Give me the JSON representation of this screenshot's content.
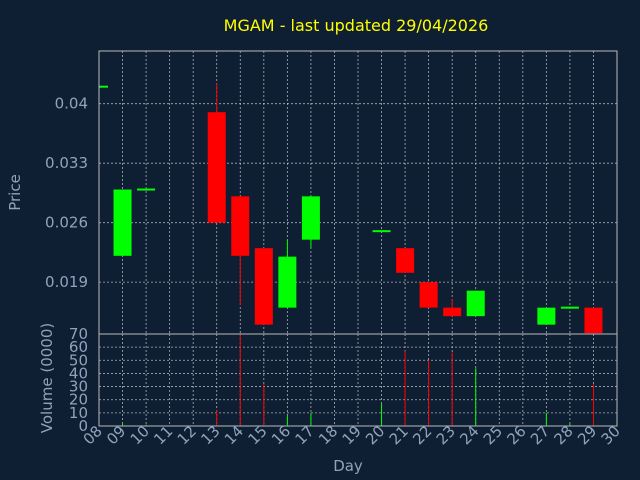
{
  "chart_data": [
    {
      "type": "candlestick",
      "title": "MGAM - last updated 29/04/2026",
      "ylabel": "Price",
      "ylim": [
        0.0129,
        0.0462
      ],
      "yticks": [
        "0.04",
        "0.033",
        "0.026",
        "0.019"
      ],
      "ytick_values": [
        0.04,
        0.033,
        0.026,
        0.019
      ],
      "grid": true,
      "up_color": "#00ff00",
      "down_color": "#ff0000",
      "candles": [
        {
          "day": 8,
          "open": 0.042,
          "close": 0.042,
          "high": 0.042,
          "low": 0.042
        },
        {
          "day": 9,
          "open": 0.0221,
          "close": 0.0299,
          "high": 0.0299,
          "low": 0.0221
        },
        {
          "day": 10,
          "open": 0.0298,
          "close": 0.0299,
          "high": 0.0299,
          "low": 0.0298
        },
        {
          "day": 13,
          "open": 0.039,
          "close": 0.026,
          "high": 0.0424,
          "low": 0.026
        },
        {
          "day": 14,
          "open": 0.0291,
          "close": 0.0221,
          "high": 0.0291,
          "low": 0.0163
        },
        {
          "day": 15,
          "open": 0.023,
          "close": 0.014,
          "high": 0.023,
          "low": 0.014
        },
        {
          "day": 16,
          "open": 0.016,
          "close": 0.022,
          "high": 0.024,
          "low": 0.016
        },
        {
          "day": 17,
          "open": 0.024,
          "close": 0.0291,
          "high": 0.0291,
          "low": 0.023
        },
        {
          "day": 20,
          "open": 0.025,
          "close": 0.025,
          "high": 0.025,
          "low": 0.025
        },
        {
          "day": 21,
          "open": 0.023,
          "close": 0.0201,
          "high": 0.023,
          "low": 0.0201
        },
        {
          "day": 22,
          "open": 0.019,
          "close": 0.016,
          "high": 0.019,
          "low": 0.016
        },
        {
          "day": 23,
          "open": 0.016,
          "close": 0.015,
          "high": 0.017,
          "low": 0.015
        },
        {
          "day": 24,
          "open": 0.015,
          "close": 0.018,
          "high": 0.018,
          "low": 0.015
        },
        {
          "day": 27,
          "open": 0.014,
          "close": 0.016,
          "high": 0.016,
          "low": 0.014
        },
        {
          "day": 28,
          "open": 0.016,
          "close": 0.016,
          "high": 0.016,
          "low": 0.016
        },
        {
          "day": 29,
          "open": 0.016,
          "close": 0.013,
          "high": 0.016,
          "low": 0.013
        }
      ]
    },
    {
      "type": "bar",
      "ylabel": "Volume (0000)",
      "xlabel": "Day",
      "ylim": [
        0,
        70
      ],
      "yticks": [
        "0",
        "10",
        "20",
        "30",
        "40",
        "50",
        "60",
        "70"
      ],
      "ytick_values": [
        0,
        10,
        20,
        30,
        40,
        50,
        60,
        70
      ],
      "categories": [
        "08",
        "09",
        "10",
        "11",
        "12",
        "13",
        "14",
        "15",
        "16",
        "17",
        "18",
        "19",
        "20",
        "21",
        "22",
        "23",
        "24",
        "25",
        "26",
        "27",
        "28",
        "29",
        "30"
      ],
      "xrange": [
        8,
        30
      ],
      "bars": [
        {
          "day": 8,
          "value": 0.3,
          "color": "#00ff00"
        },
        {
          "day": 9,
          "value": 2,
          "color": "#00ff00"
        },
        {
          "day": 10,
          "value": 1,
          "color": "#00ff00"
        },
        {
          "day": 13,
          "value": 12,
          "color": "#ff0000"
        },
        {
          "day": 14,
          "value": 70,
          "color": "#ff0000"
        },
        {
          "day": 15,
          "value": 32,
          "color": "#ff0000"
        },
        {
          "day": 16,
          "value": 8,
          "color": "#00ff00"
        },
        {
          "day": 17,
          "value": 10,
          "color": "#00ff00"
        },
        {
          "day": 20,
          "value": 17,
          "color": "#00ff00"
        },
        {
          "day": 21,
          "value": 57,
          "color": "#ff0000"
        },
        {
          "day": 22,
          "value": 50,
          "color": "#ff0000"
        },
        {
          "day": 23,
          "value": 56,
          "color": "#ff0000"
        },
        {
          "day": 24,
          "value": 44,
          "color": "#00ff00"
        },
        {
          "day": 27,
          "value": 10,
          "color": "#00ff00"
        },
        {
          "day": 28,
          "value": 2,
          "color": "#00ff00"
        },
        {
          "day": 29,
          "value": 32,
          "color": "#ff0000"
        }
      ]
    }
  ]
}
